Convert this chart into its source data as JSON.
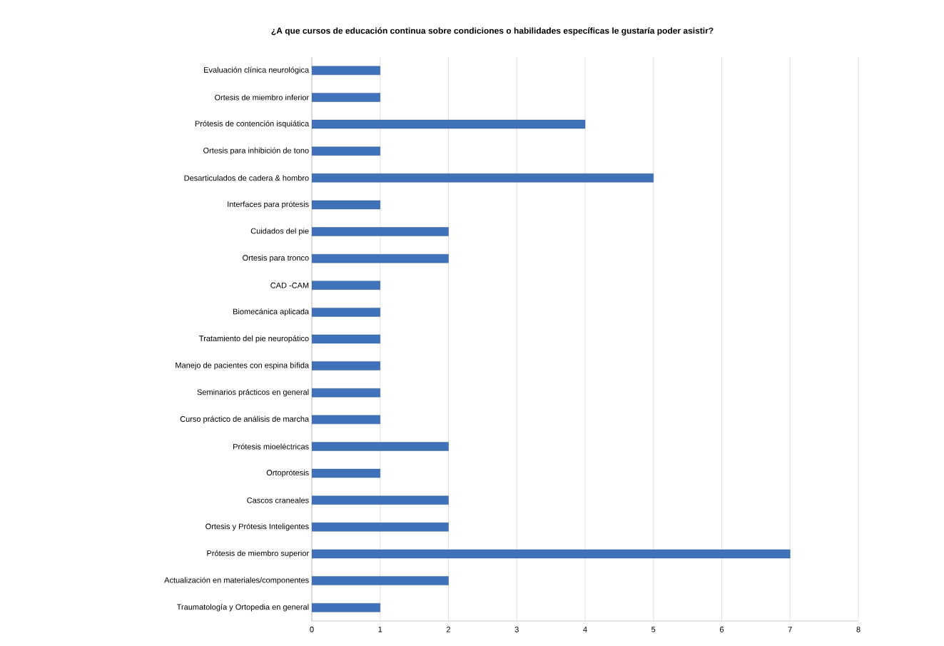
{
  "chart_data": {
    "type": "bar",
    "orientation": "horizontal",
    "title": "¿A que cursos de educación continua sobre condiciones o habilidades específicas le gustaría poder asistir?",
    "categories": [
      "Evaluación clínica neurológica",
      "Ortesis de miembro inferior",
      "Prótesis de contención isquiática",
      "Ortesis para inhibición de tono",
      "Desarticulados de cadera & hombro",
      "Interfaces para prótesis",
      "Cuidados del pie",
      "Ortesis para tronco",
      "CAD -CAM",
      "Biomecánica aplicada",
      "Tratamiento del pie neuropático",
      "Manejo de pacientes con espina bífida",
      "Seminarios prácticos en general",
      "Curso práctico de análisis de marcha",
      "Prótesis mioeléctricas",
      "Ortoprótesis",
      "Cascos craneales",
      "Ortesis y Prótesis Inteligentes",
      "Prótesis de miembro superior",
      "Actualización en materiales/componentes",
      "Traumatología y Ortopedia en general"
    ],
    "values": [
      1,
      1,
      4,
      1,
      5,
      1,
      2,
      2,
      1,
      1,
      1,
      1,
      1,
      1,
      2,
      1,
      2,
      2,
      7,
      2,
      1
    ],
    "color": "#3f72b8",
    "xlim": [
      0,
      8
    ],
    "xticks": [
      0,
      1,
      2,
      3,
      4,
      5,
      6,
      7,
      8
    ],
    "grid": "x"
  }
}
